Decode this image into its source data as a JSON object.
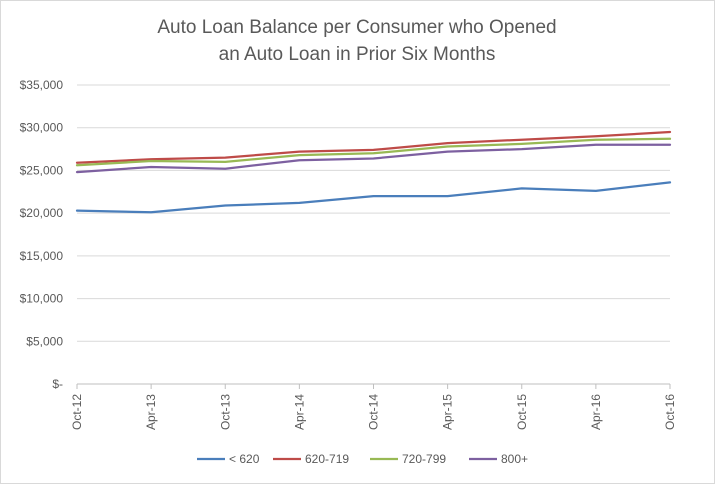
{
  "chart_data": {
    "type": "line",
    "title": "Auto Loan Balance per Consumer who Opened an Auto Loan in Prior Six Months",
    "title_lines": [
      "Auto Loan Balance per Consumer who Opened",
      "an Auto Loan in Prior Six Months"
    ],
    "categories": [
      "Oct-12",
      "Apr-13",
      "Oct-13",
      "Apr-14",
      "Oct-14",
      "Apr-15",
      "Oct-15",
      "Apr-16",
      "Oct-16"
    ],
    "y_ticks": [
      {
        "value": 0,
        "label": "$-"
      },
      {
        "value": 5000,
        "label": "$5,000"
      },
      {
        "value": 10000,
        "label": "$10,000"
      },
      {
        "value": 15000,
        "label": "$15,000"
      },
      {
        "value": 20000,
        "label": "$20,000"
      },
      {
        "value": 25000,
        "label": "$25,000"
      },
      {
        "value": 30000,
        "label": "$30,000"
      },
      {
        "value": 35000,
        "label": "$35,000"
      }
    ],
    "ylim": [
      0,
      35000
    ],
    "grid": true,
    "legend_position": "bottom",
    "series": [
      {
        "name": "< 620",
        "color": "#4a7ebb",
        "values": [
          20300,
          20100,
          20900,
          21200,
          22000,
          22000,
          22900,
          22600,
          23600
        ]
      },
      {
        "name": "620-719",
        "color": "#be4b48",
        "values": [
          25900,
          26300,
          26500,
          27200,
          27400,
          28200,
          28600,
          29000,
          29500
        ]
      },
      {
        "name": "720-799",
        "color": "#98b954",
        "values": [
          25600,
          26100,
          26000,
          26800,
          27000,
          27800,
          28100,
          28600,
          28700
        ]
      },
      {
        "name": "800+",
        "color": "#7d60a0",
        "values": [
          24800,
          25400,
          25200,
          26200,
          26400,
          27200,
          27500,
          28000,
          28000
        ]
      }
    ]
  }
}
